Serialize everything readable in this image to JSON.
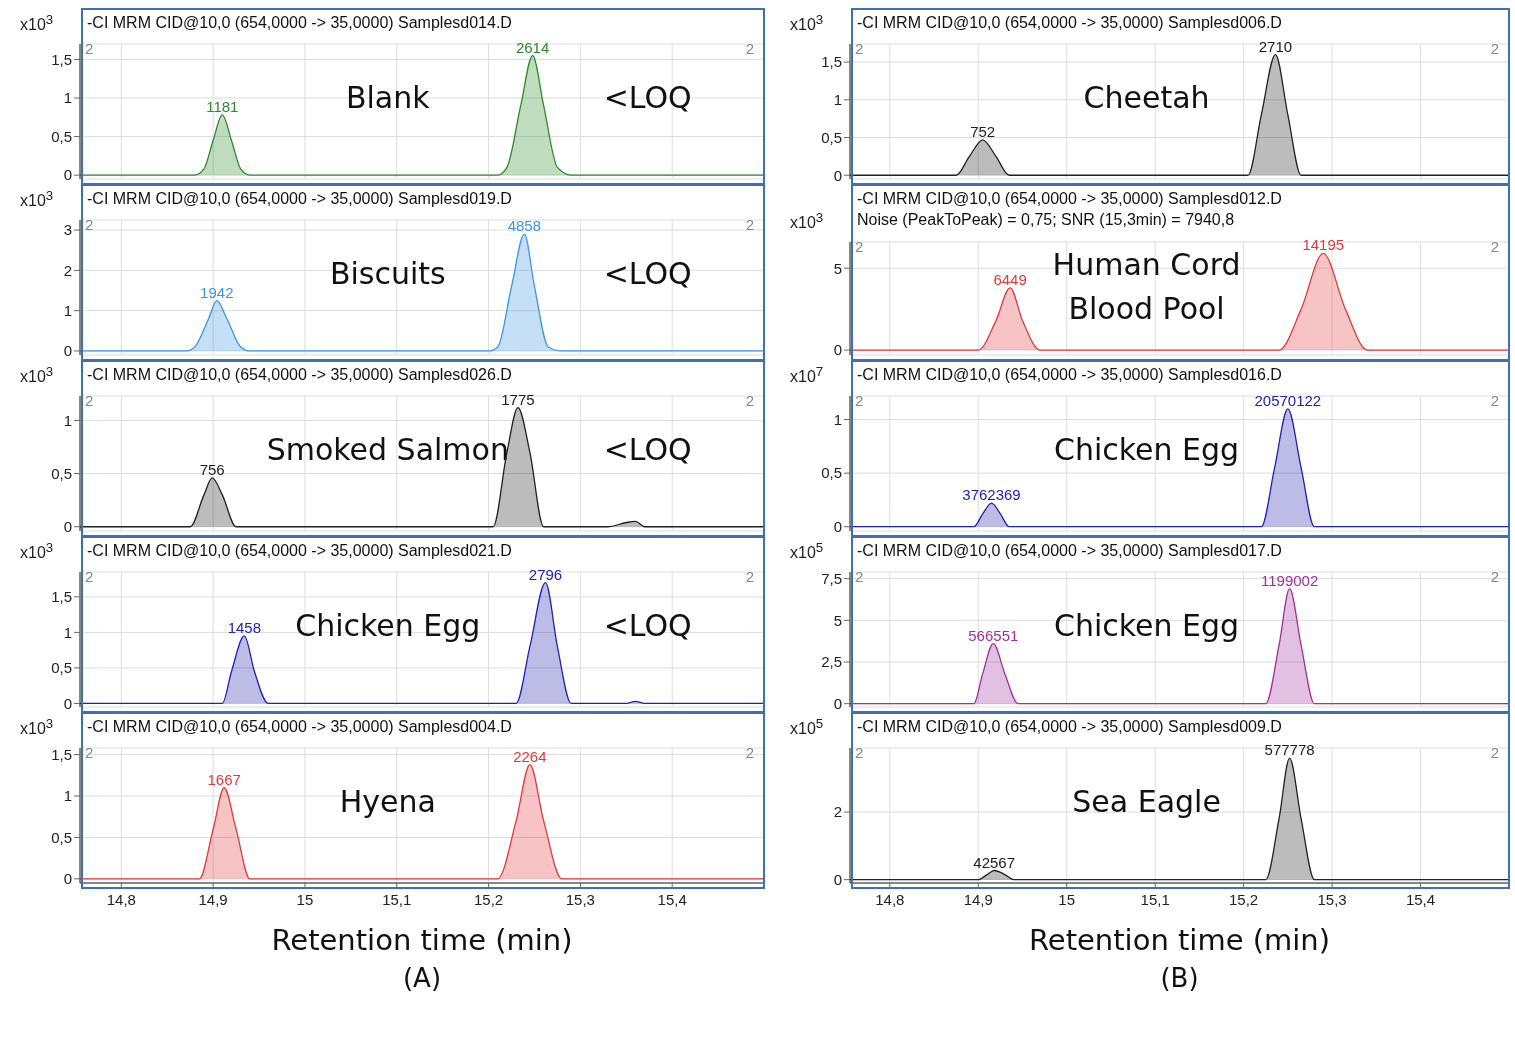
{
  "chart_data": [
    {
      "type": "area",
      "title": "-CI MRM CID@10,0 (654,0000 -> 35,0000) Samplesd014.D",
      "ylabel": "x10$^{3}$",
      "color": "#2a8a2a",
      "grid": true,
      "tick_labels": "y",
      "xlim": [
        14.755,
        15.5
      ],
      "xticks": [
        {
          "value": 14.8,
          "label": null
        },
        {
          "value": 14.9,
          "label": null
        },
        {
          "value": 15,
          "label": null
        },
        {
          "value": 15.1,
          "label": null
        },
        {
          "value": 15.2,
          "label": null
        },
        {
          "value": 15.3,
          "label": null
        },
        {
          "value": 15.4,
          "label": null
        }
      ],
      "ylim": [
        -0.05,
        1.7
      ],
      "yticks": [
        0,
        {
          "value": 0.5,
          "label": "0,5"
        },
        1,
        {
          "value": 1.5,
          "label": "1,5"
        }
      ],
      "x": [
        14.755,
        14.88,
        14.89,
        14.9,
        14.91,
        14.92,
        14.93,
        14.94,
        15.21,
        15.22,
        15.235,
        15.248,
        15.26,
        15.275,
        15.29,
        15.5
      ],
      "values": [
        0,
        0,
        0.08,
        0.45,
        0.78,
        0.45,
        0.08,
        0,
        0,
        0.1,
        0.9,
        1.55,
        0.9,
        0.1,
        0,
        0
      ],
      "annotations": [
        "2",
        "2",
        "Blank",
        "<LOQ",
        {
          "text": "1181",
          "x": 14.91,
          "y": 0.78
        },
        {
          "text": "2614",
          "x": 15.248,
          "y": 1.55
        }
      ]
    },
    {
      "type": "area",
      "title": "-CI MRM CID@10,0 (654,0000 -> 35,0000) Samplesd019.D",
      "ylabel": "x10$^{3}$",
      "color": "#3c96e0",
      "grid": true,
      "tick_labels": "y",
      "xlim": [
        14.755,
        15.5
      ],
      "xticks": [
        {
          "value": 14.8,
          "label": null
        },
        {
          "value": 14.9,
          "label": null
        },
        {
          "value": 15,
          "label": null
        },
        {
          "value": 15.1,
          "label": null
        },
        {
          "value": 15.2,
          "label": null
        },
        {
          "value": 15.3,
          "label": null
        },
        {
          "value": 15.4,
          "label": null
        }
      ],
      "ylim": [
        -0.1,
        3.25
      ],
      "yticks": [
        0,
        1,
        2,
        3
      ],
      "x": [
        14.755,
        14.87,
        14.88,
        14.895,
        14.904,
        14.915,
        14.93,
        14.94,
        15.2,
        15.21,
        15.225,
        15.239,
        15.25,
        15.265,
        15.28,
        15.5
      ],
      "values": [
        0,
        0,
        0.1,
        0.8,
        1.25,
        0.8,
        0.1,
        0,
        0,
        0.1,
        1.6,
        2.9,
        1.6,
        0.1,
        0,
        0
      ],
      "annotations": [
        "2",
        "2",
        "Biscuits",
        "<LOQ",
        {
          "text": "1942",
          "x": 14.904,
          "y": 1.25
        },
        {
          "text": "4858",
          "x": 15.239,
          "y": 2.9
        }
      ]
    },
    {
      "type": "area",
      "title": "-CI MRM CID@10,0 (654,0000 -> 35,0000) Samplesd026.D",
      "ylabel": "x10$^{3}$",
      "color": "#222222",
      "grid": true,
      "tick_labels": "y",
      "xlim": [
        14.755,
        15.5
      ],
      "xticks": [
        {
          "value": 14.8,
          "label": null
        },
        {
          "value": 14.9,
          "label": null
        },
        {
          "value": 15,
          "label": null
        },
        {
          "value": 15.1,
          "label": null
        },
        {
          "value": 15.2,
          "label": null
        },
        {
          "value": 15.3,
          "label": null
        },
        {
          "value": 15.4,
          "label": null
        }
      ],
      "ylim": [
        -0.04,
        1.23
      ],
      "yticks": [
        0,
        {
          "value": 0.5,
          "label": "0,5"
        },
        1
      ],
      "x": [
        14.755,
        14.875,
        14.89,
        14.899,
        14.91,
        14.925,
        15.205,
        15.22,
        15.232,
        15.245,
        15.26,
        15.33,
        15.35,
        15.36,
        15.37,
        15.5
      ],
      "values": [
        0,
        0,
        0.3,
        0.46,
        0.3,
        0,
        0,
        0.7,
        1.12,
        0.7,
        0,
        0,
        0.04,
        0.05,
        0,
        0
      ],
      "annotations": [
        "2",
        "2",
        "Smoked Salmon",
        "<LOQ",
        {
          "text": "756",
          "x": 14.899,
          "y": 0.46
        },
        {
          "text": "1775",
          "x": 15.232,
          "y": 1.12
        }
      ]
    },
    {
      "type": "area",
      "title": "-CI MRM CID@10,0 (654,0000 -> 35,0000) Samplesd021.D",
      "ylabel": "x10$^{3}$",
      "color": "#2222b0",
      "grid": true,
      "tick_labels": "y",
      "xlim": [
        14.755,
        15.5
      ],
      "xticks": [
        {
          "value": 14.8,
          "label": null
        },
        {
          "value": 14.9,
          "label": null
        },
        {
          "value": 15,
          "label": null
        },
        {
          "value": 15.1,
          "label": null
        },
        {
          "value": 15.2,
          "label": null
        },
        {
          "value": 15.3,
          "label": null
        },
        {
          "value": 15.4,
          "label": null
        }
      ],
      "ylim": [
        -0.05,
        1.85
      ],
      "yticks": [
        0,
        {
          "value": 0.5,
          "label": "0,5"
        },
        1,
        {
          "value": 1.5,
          "label": "1,5"
        }
      ],
      "x": [
        14.755,
        14.91,
        14.92,
        14.934,
        14.945,
        14.96,
        15.23,
        15.245,
        15.262,
        15.275,
        15.29,
        15.35,
        15.36,
        15.37,
        15.5
      ],
      "values": [
        0,
        0,
        0.45,
        0.95,
        0.45,
        0,
        0,
        0.8,
        1.7,
        0.8,
        0,
        0,
        0.03,
        0,
        0
      ],
      "annotations": [
        "2",
        "2",
        "Chicken Egg",
        "<LOQ",
        {
          "text": "1458",
          "x": 14.934,
          "y": 0.95
        },
        {
          "text": "2796",
          "x": 15.262,
          "y": 1.7
        }
      ]
    },
    {
      "type": "area",
      "title": "-CI MRM CID@10,0 (654,0000 -> 35,0000) Samplesd004.D",
      "ylabel": "x10$^{3}$",
      "xlabel": "Retention time (min)",
      "color": "#e03a3a",
      "grid": true,
      "xlim": [
        14.755,
        15.5
      ],
      "xticks": [
        {
          "value": 14.8,
          "label": "14,8"
        },
        {
          "value": 14.9,
          "label": "14,9"
        },
        15,
        {
          "value": 15.1,
          "label": "15,1"
        },
        {
          "value": 15.2,
          "label": "15,2"
        },
        {
          "value": 15.3,
          "label": "15,3"
        },
        {
          "value": 15.4,
          "label": "15,4"
        }
      ],
      "ylim": [
        -0.05,
        1.58
      ],
      "yticks": [
        0,
        {
          "value": 0.5,
          "label": "0,5"
        },
        1,
        {
          "value": 1.5,
          "label": "1,5"
        }
      ],
      "x": [
        14.755,
        14.885,
        14.9,
        14.912,
        14.925,
        14.94,
        15.21,
        15.23,
        15.245,
        15.26,
        15.28,
        15.5
      ],
      "values": [
        0,
        0,
        0.6,
        1.1,
        0.6,
        0,
        0,
        0.7,
        1.38,
        0.7,
        0,
        0
      ],
      "annotations": [
        "2",
        "2",
        "Hyena",
        "(A)",
        {
          "text": "1667",
          "x": 14.912,
          "y": 1.1
        },
        {
          "text": "2264",
          "x": 15.245,
          "y": 1.38
        }
      ]
    },
    {
      "type": "area",
      "title": "-CI MRM CID@10,0 (654,0000 -> 35,0000) Samplesd006.D",
      "ylabel": "x10$^{3}$",
      "color": "#222222",
      "grid": true,
      "tick_labels": "y",
      "xlim": [
        14.755,
        15.5
      ],
      "xticks": [
        {
          "value": 14.8,
          "label": null
        },
        {
          "value": 14.9,
          "label": null
        },
        {
          "value": 15,
          "label": null
        },
        {
          "value": 15.1,
          "label": null
        },
        {
          "value": 15.2,
          "label": null
        },
        {
          "value": 15.3,
          "label": null
        },
        {
          "value": 15.4,
          "label": null
        }
      ],
      "ylim": [
        -0.05,
        1.74
      ],
      "yticks": [
        0,
        {
          "value": 0.5,
          "label": "0,5"
        },
        1,
        {
          "value": 1.5,
          "label": "1,5"
        }
      ],
      "x": [
        14.755,
        14.875,
        14.89,
        14.905,
        14.92,
        14.935,
        15.205,
        15.22,
        15.236,
        15.25,
        15.265,
        15.5
      ],
      "values": [
        0,
        0,
        0.25,
        0.47,
        0.25,
        0,
        0,
        0.8,
        1.6,
        0.8,
        0,
        0
      ],
      "annotations": [
        "2",
        "2",
        "Cheetah",
        {
          "text": "752",
          "x": 14.905,
          "y": 0.47
        },
        {
          "text": "2710",
          "x": 15.236,
          "y": 1.6
        }
      ]
    },
    {
      "type": "area",
      "title": "-CI MRM CID@10,0 (654,0000 -> 35,0000) Samplesd012.D",
      "subtitle": "Noise (PeakToPeak) = 0,75; SNR (15,3min) = 7940,8",
      "ylabel": "x10$^{3}$",
      "color": "#e03a3a",
      "grid": true,
      "tick_labels": "y",
      "xlim": [
        14.755,
        15.5
      ],
      "xticks": [
        {
          "value": 14.8,
          "label": null
        },
        {
          "value": 14.9,
          "label": null
        },
        {
          "value": 15,
          "label": null
        },
        {
          "value": 15.1,
          "label": null
        },
        {
          "value": 15.2,
          "label": null
        },
        {
          "value": 15.3,
          "label": null
        },
        {
          "value": 15.4,
          "label": null
        }
      ],
      "ylim": [
        -0.3,
        6.6
      ],
      "yticks": [
        0,
        5
      ],
      "x": [
        14.755,
        14.9,
        14.92,
        14.936,
        14.95,
        14.97,
        15.24,
        15.265,
        15.29,
        15.315,
        15.34,
        15.5
      ],
      "values": [
        0,
        0,
        1.8,
        3.8,
        1.8,
        0,
        0,
        2.5,
        5.9,
        2.5,
        0,
        0
      ],
      "annotations": [
        "2",
        "2",
        "Human Cord Blood Pool",
        {
          "text": "6449",
          "x": 14.936,
          "y": 3.8
        },
        {
          "text": "14195",
          "x": 15.29,
          "y": 5.9
        }
      ]
    },
    {
      "type": "area",
      "title": "-CI MRM CID@10,0 (654,0000 -> 35,0000) Samplesd016.D",
      "ylabel": "x10$^{7}$",
      "color": "#2222b0",
      "grid": true,
      "tick_labels": "y",
      "xlim": [
        14.755,
        15.5
      ],
      "xticks": [
        {
          "value": 14.8,
          "label": null
        },
        {
          "value": 14.9,
          "label": null
        },
        {
          "value": 15,
          "label": null
        },
        {
          "value": 15.1,
          "label": null
        },
        {
          "value": 15.2,
          "label": null
        },
        {
          "value": 15.3,
          "label": null
        },
        {
          "value": 15.4,
          "label": null
        }
      ],
      "ylim": [
        -0.04,
        1.22
      ],
      "yticks": [
        0,
        {
          "value": 0.5,
          "label": "0,5"
        },
        1
      ],
      "x": [
        14.755,
        14.895,
        14.905,
        14.915,
        14.925,
        14.935,
        15.22,
        15.235,
        15.25,
        15.265,
        15.28,
        15.5
      ],
      "values": [
        0,
        0,
        0.12,
        0.22,
        0.12,
        0,
        0,
        0.55,
        1.1,
        0.55,
        0,
        0
      ],
      "annotations": [
        "2",
        "2",
        "Chicken Egg",
        {
          "text": "3762369",
          "x": 14.915,
          "y": 0.22
        },
        {
          "text": "20570122",
          "x": 15.25,
          "y": 1.1
        }
      ]
    },
    {
      "type": "area",
      "title": "-CI MRM CID@10,0 (654,0000 -> 35,0000) Samplesd017.D",
      "ylabel": "x10$^{5}$",
      "color": "#a0309c",
      "grid": true,
      "tick_labels": "y",
      "xlim": [
        14.755,
        15.5
      ],
      "xticks": [
        {
          "value": 14.8,
          "label": null
        },
        {
          "value": 14.9,
          "label": null
        },
        {
          "value": 15,
          "label": null
        },
        {
          "value": 15.1,
          "label": null
        },
        {
          "value": 15.2,
          "label": null
        },
        {
          "value": 15.3,
          "label": null
        },
        {
          "value": 15.4,
          "label": null
        }
      ],
      "ylim": [
        -0.2,
        7.9
      ],
      "yticks": [
        0,
        {
          "value": 2.5,
          "label": "2,5"
        },
        5,
        {
          "value": 7.5,
          "label": "7,5"
        }
      ],
      "x": [
        14.755,
        14.895,
        14.905,
        14.917,
        14.93,
        14.945,
        15.225,
        15.24,
        15.252,
        15.265,
        15.28,
        15.5
      ],
      "values": [
        0,
        0,
        1.8,
        3.6,
        1.8,
        0,
        0,
        3.5,
        6.9,
        3.5,
        0,
        0
      ],
      "annotations": [
        "2",
        "2",
        "Chicken Egg",
        {
          "text": "566551",
          "x": 14.917,
          "y": 3.6
        },
        {
          "text": "1199002",
          "x": 15.252,
          "y": 6.9
        }
      ]
    },
    {
      "type": "area",
      "title": "-CI MRM CID@10,0 (654,0000 -> 35,0000) Samplesd009.D",
      "ylabel": "x10$^{5}$",
      "xlabel": "Retention time (min)",
      "color": "#222222",
      "grid": true,
      "xlim": [
        14.755,
        15.5
      ],
      "xticks": [
        {
          "value": 14.8,
          "label": "14,8"
        },
        {
          "value": 14.9,
          "label": "14,9"
        },
        15,
        {
          "value": 15.1,
          "label": "15,1"
        },
        {
          "value": 15.2,
          "label": "15,2"
        },
        {
          "value": 15.3,
          "label": "15,3"
        },
        {
          "value": 15.4,
          "label": "15,4"
        }
      ],
      "ylim": [
        -0.1,
        3.9
      ],
      "yticks": [
        0,
        2
      ],
      "x": [
        14.755,
        14.9,
        14.91,
        14.918,
        14.93,
        14.94,
        15.225,
        15.24,
        15.252,
        15.265,
        15.28,
        15.5
      ],
      "values": [
        0,
        0,
        0.15,
        0.27,
        0.15,
        0,
        0,
        1.8,
        3.6,
        1.8,
        0,
        0
      ],
      "annotations": [
        "2",
        "2",
        "Sea Eagle",
        "(B)",
        {
          "text": "42567",
          "x": 14.918,
          "y": 0.27
        },
        {
          "text": "577778",
          "x": 15.252,
          "y": 3.6
        }
      ]
    }
  ]
}
